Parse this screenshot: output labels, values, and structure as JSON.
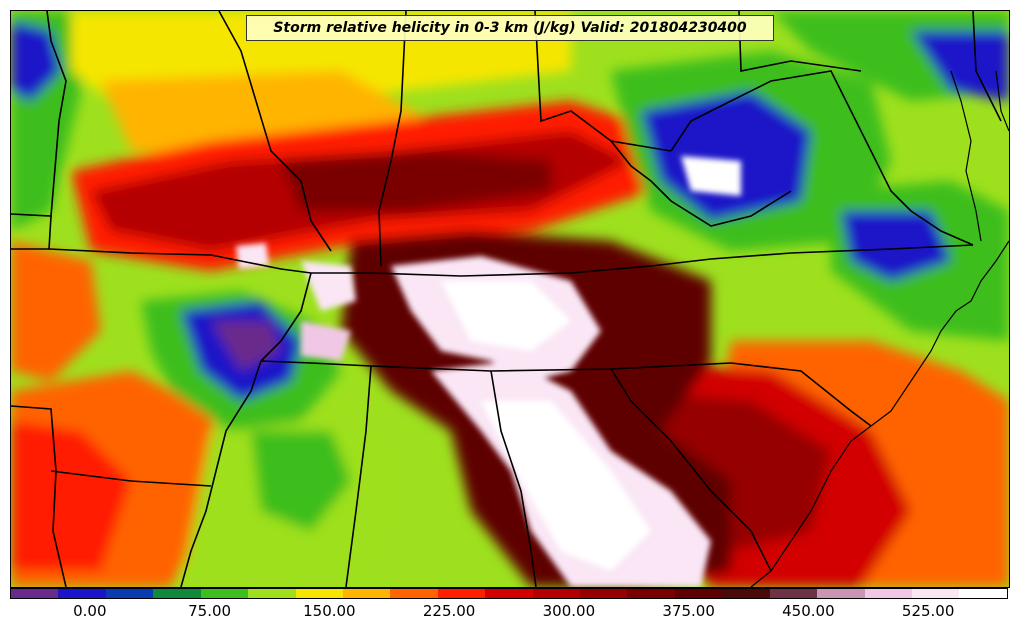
{
  "title": "Storm relative helicity in 0-3 km (J/kg) Valid: 201804230400",
  "colorbar": {
    "colors": [
      "#6a2a8c",
      "#1c14c8",
      "#0a3cb0",
      "#0e8a3a",
      "#3cbe1e",
      "#9ee01e",
      "#f5e600",
      "#ffb400",
      "#ff6400",
      "#ff1e00",
      "#d20000",
      "#b40000",
      "#960000",
      "#7a0000",
      "#5e0000",
      "#4a0a0a",
      "#6e3246",
      "#c896b4",
      "#f0c8e6",
      "#fae6f5",
      "#ffffff"
    ],
    "tick_labels": [
      "0.00",
      "75.00",
      "150.00",
      "225.00",
      "300.00",
      "375.00",
      "450.00",
      "525.00"
    ],
    "min": -50,
    "max": 575,
    "tick_values": [
      0,
      75,
      150,
      225,
      300,
      375,
      450,
      525
    ]
  }
}
